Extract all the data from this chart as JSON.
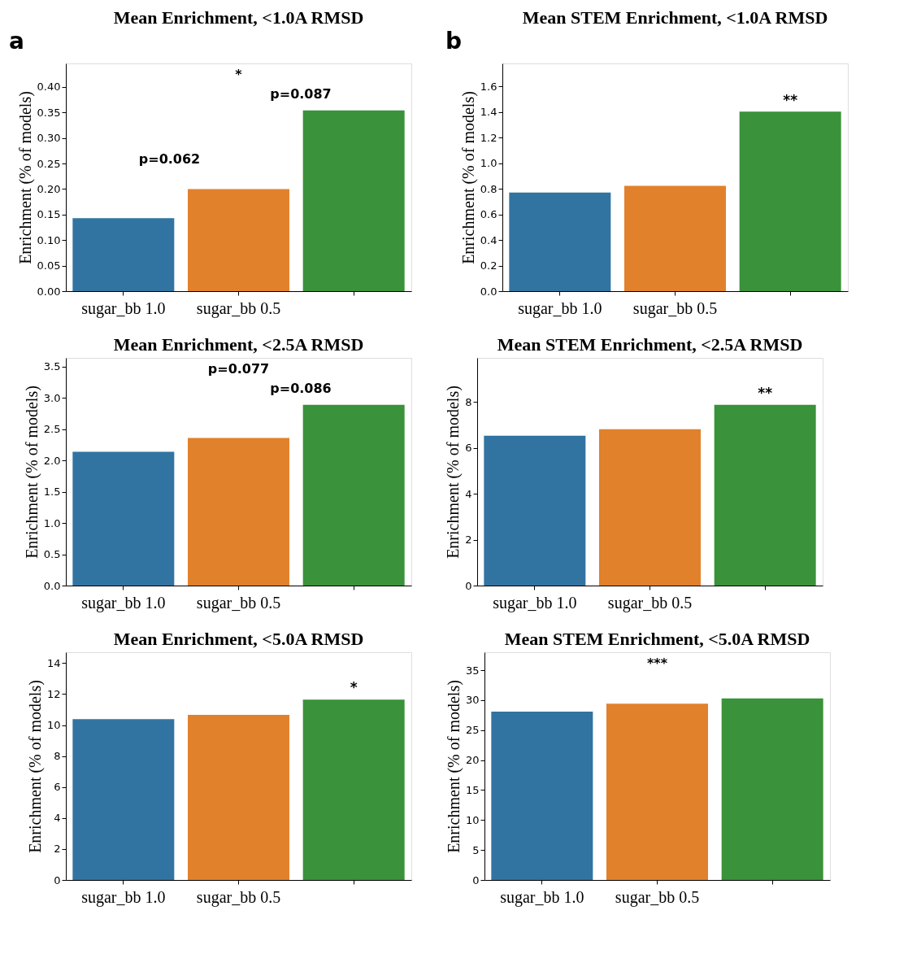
{
  "chart_data": [
    {
      "type": "bar",
      "title": "Mean Enrichment, <1.0A RMSD",
      "ylabel": "Enrichment (% of models)",
      "categories": [
        "sugar_bb 1.0",
        "sugar_bb 0.5",
        null
      ],
      "values": [
        0.143,
        0.2,
        0.354
      ],
      "colors": [
        "#3274a1",
        "#e1812c",
        "#3a923a"
      ],
      "ylim": [
        0,
        0.446
      ],
      "yticks": [
        {
          "value": 0,
          "label": "0.00"
        },
        0.05,
        {
          "value": 0.1,
          "label": "0.10"
        },
        0.15,
        {
          "value": 0.2,
          "label": "0.20"
        },
        0.25,
        {
          "value": 0.3,
          "label": "0.30"
        },
        0.35,
        {
          "value": 0.4,
          "label": "0.40"
        }
      ],
      "grid": false,
      "legend": false,
      "annotations": [
        "a",
        "*",
        "p=0.087",
        "p=0.062"
      ]
    },
    {
      "type": "bar",
      "title": "Mean STEM Enrichment, <1.0A RMSD",
      "ylabel": "Enrichment (% of models)",
      "categories": [
        "sugar_bb 1.0",
        "sugar_bb 0.5",
        null
      ],
      "values": [
        0.771,
        0.823,
        1.403
      ],
      "colors": [
        "#3274a1",
        "#e1812c",
        "#3a923a"
      ],
      "ylim": [
        0,
        1.78
      ],
      "yticks": [
        {
          "value": 0,
          "label": "0.0"
        },
        0.2,
        0.4,
        0.6,
        0.8,
        {
          "value": 1,
          "label": "1.0"
        },
        1.2,
        1.4,
        1.6
      ],
      "grid": false,
      "legend": false,
      "annotations": [
        "b",
        {
          "text": "**",
          "y": 1.43
        }
      ]
    },
    {
      "type": "bar",
      "title": "Mean Enrichment, <2.5A RMSD",
      "ylabel": "Enrichment (% of models)",
      "categories": [
        "sugar_bb 1.0",
        "sugar_bb 0.5",
        null
      ],
      "values": [
        2.14,
        2.36,
        2.89
      ],
      "colors": [
        "#3274a1",
        "#e1812c",
        "#3a923a"
      ],
      "ylim": [
        0,
        3.64
      ],
      "yticks": [
        {
          "value": 0,
          "label": "0.0"
        },
        0.5,
        {
          "value": 1,
          "label": "1.0"
        },
        1.5,
        {
          "value": 2,
          "label": "2.0"
        },
        2.5,
        {
          "value": 3,
          "label": "3.0"
        },
        3.5
      ],
      "grid": false,
      "legend": false,
      "annotations": [
        "p=0.077",
        "p=0.086"
      ]
    },
    {
      "type": "bar",
      "title": "Mean STEM Enrichment, <2.5A RMSD",
      "ylabel": "Enrichment (% of models)",
      "categories": [
        "sugar_bb 1.0",
        "sugar_bb 0.5",
        null
      ],
      "values": [
        6.53,
        6.82,
        7.88
      ],
      "colors": [
        "#3274a1",
        "#e1812c",
        "#3a923a"
      ],
      "ylim": [
        0,
        9.93
      ],
      "yticks": [
        0,
        2,
        4,
        6,
        8
      ],
      "grid": false,
      "legend": false,
      "annotations": [
        {
          "text": "**",
          "y": 8.05
        }
      ]
    },
    {
      "type": "bar",
      "title": "Mean Enrichment, <5.0A RMSD",
      "ylabel": "Enrichment (% of models)",
      "categories": [
        "sugar_bb 1.0",
        "sugar_bb 0.5",
        null
      ],
      "values": [
        10.38,
        10.66,
        11.64
      ],
      "colors": [
        "#3274a1",
        "#e1812c",
        "#3a923a"
      ],
      "ylim": [
        0,
        14.7
      ],
      "yticks": [
        0,
        2,
        4,
        6,
        8,
        10,
        12,
        14
      ],
      "grid": false,
      "legend": false,
      "annotations": [
        {
          "text": "*",
          "y": 11.9
        }
      ]
    },
    {
      "type": "bar",
      "title": "Mean STEM Enrichment, <5.0A RMSD",
      "ylabel": "Enrichment (% of models)",
      "categories": [
        "sugar_bb 1.0",
        "sugar_bb 0.5",
        null
      ],
      "values": [
        28.1,
        29.4,
        30.3
      ],
      "colors": [
        "#3274a1",
        "#e1812c",
        "#3a923a"
      ],
      "ylim": [
        0,
        38.0
      ],
      "yticks": [
        0,
        5,
        10,
        15,
        20,
        25,
        30,
        35
      ],
      "grid": false,
      "legend": false,
      "annotations": [
        "***"
      ]
    }
  ]
}
